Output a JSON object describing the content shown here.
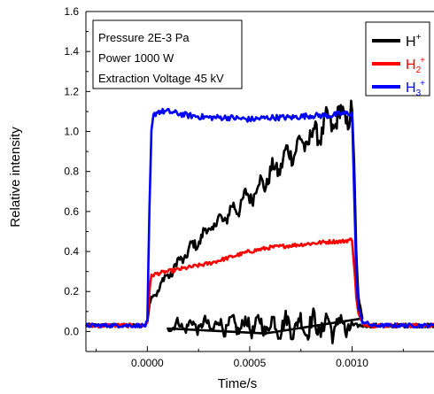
{
  "chart_data": {
    "type": "line",
    "xlabel": "Time/s",
    "ylabel": "Relative intensity",
    "xlim": [
      -0.0003,
      0.0014
    ],
    "ylim": [
      -0.1,
      1.6
    ],
    "x_ticks": [
      "0.0000",
      "0.0005",
      "0.0010"
    ],
    "x_tick_values": [
      0.0,
      0.0005,
      0.001
    ],
    "y_ticks": [
      "0.0",
      "0.2",
      "0.4",
      "0.6",
      "0.8",
      "1.0",
      "1.2",
      "1.4",
      "1.6"
    ],
    "y_tick_values": [
      0.0,
      0.2,
      0.4,
      0.6,
      0.8,
      1.0,
      1.2,
      1.4,
      1.6
    ],
    "annotations": [
      "Pressure 2E-3 Pa",
      "Power 1000 W",
      "Extraction Voltage 45 kV"
    ],
    "legend_position": "top-right",
    "series": [
      {
        "name": "H+",
        "legend": {
          "base": "H",
          "sub": "",
          "sup": "+"
        },
        "color": "#000000",
        "x": [
          -0.0003,
          -0.0001,
          -1e-05,
          0.0,
          1e-05,
          2e-05,
          5e-05,
          0.0001,
          0.0002,
          0.0003,
          0.0004,
          0.0005,
          0.0006,
          0.0007,
          0.0008,
          0.0009,
          0.00095,
          0.001,
          0.00101,
          0.00102,
          0.00103,
          0.00105,
          0.0001,
          0.0012,
          0.0014
        ],
        "y": [
          0.03,
          0.03,
          0.03,
          0.05,
          0.14,
          0.17,
          0.21,
          0.28,
          0.4,
          0.51,
          0.59,
          0.68,
          0.78,
          0.9,
          0.97,
          1.05,
          1.07,
          1.1,
          0.85,
          0.4,
          0.18,
          0.06,
          0.03,
          0.03,
          0.03
        ]
      },
      {
        "name": "H2+",
        "legend": {
          "base": "H",
          "sub": "2",
          "sup": "+"
        },
        "color": "#ff0000",
        "x": [
          -0.0003,
          -0.0001,
          -1e-05,
          0.0,
          1e-05,
          2e-05,
          5e-05,
          0.0001,
          0.0002,
          0.0003,
          0.0004,
          0.0005,
          0.0006,
          0.0007,
          0.0008,
          0.0009,
          0.00095,
          0.001,
          0.00101,
          0.00102,
          0.00103,
          0.00105,
          0.0011,
          0.0012,
          0.0014
        ],
        "y": [
          0.03,
          0.03,
          0.03,
          0.05,
          0.2,
          0.28,
          0.29,
          0.3,
          0.32,
          0.34,
          0.37,
          0.4,
          0.42,
          0.43,
          0.44,
          0.45,
          0.45,
          0.46,
          0.33,
          0.18,
          0.09,
          0.04,
          0.03,
          0.03,
          0.03
        ]
      },
      {
        "name": "H3+",
        "legend": {
          "base": "H",
          "sub": "3",
          "sup": "+"
        },
        "color": "#0000ff",
        "x": [
          -0.0003,
          -0.0001,
          -1e-05,
          0.0,
          1e-05,
          2e-05,
          3e-05,
          5e-05,
          0.0001,
          0.0002,
          0.0003,
          0.0004,
          0.0005,
          0.0006,
          0.0007,
          0.0008,
          0.0009,
          0.00095,
          0.001,
          0.00101,
          0.00102,
          0.00103,
          0.00105,
          0.0011,
          0.0012,
          0.0014
        ],
        "y": [
          0.03,
          0.03,
          0.03,
          0.05,
          0.6,
          1.0,
          1.08,
          1.1,
          1.1,
          1.08,
          1.07,
          1.07,
          1.06,
          1.07,
          1.07,
          1.08,
          1.08,
          1.09,
          1.09,
          0.7,
          0.3,
          0.12,
          0.05,
          0.03,
          0.03,
          0.03
        ]
      }
    ]
  }
}
